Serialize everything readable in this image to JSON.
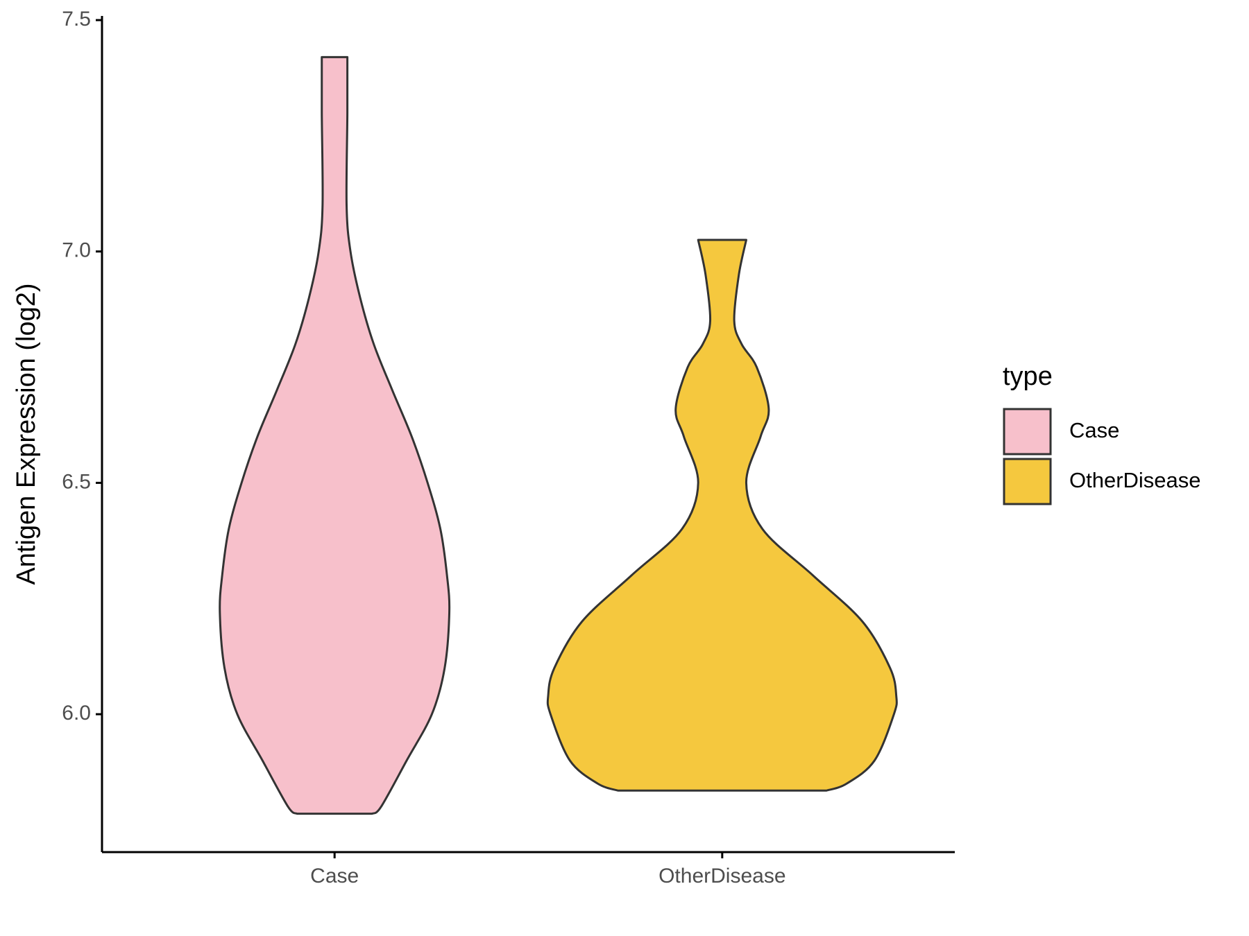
{
  "chart_data": {
    "type": "violin",
    "y_label": "Antigen Expression (log2)",
    "categories": [
      "Case",
      "OtherDisease"
    ],
    "legend_title": "type",
    "series": [
      {
        "name": "Case",
        "color": "#f7c0cb",
        "y": [
          7.42,
          7.3,
          7.1,
          7.0,
          6.9,
          6.8,
          6.7,
          6.6,
          6.5,
          6.4,
          6.3,
          6.22,
          6.1,
          6.0,
          5.9,
          5.8,
          5.785
        ],
        "half_width": [
          0.033,
          0.033,
          0.031,
          0.041,
          0.066,
          0.101,
          0.149,
          0.199,
          0.24,
          0.273,
          0.29,
          0.296,
          0.284,
          0.251,
          0.186,
          0.12,
          0.097
        ]
      },
      {
        "name": "OtherDisease",
        "color": "#f5c83e",
        "y": [
          7.025,
          6.95,
          6.85,
          6.8,
          6.75,
          6.66,
          6.6,
          6.5,
          6.4,
          6.3,
          6.2,
          6.1,
          6.04,
          6.0,
          5.9,
          5.85,
          5.835
        ],
        "half_width": [
          0.062,
          0.043,
          0.031,
          0.05,
          0.089,
          0.12,
          0.099,
          0.062,
          0.104,
          0.234,
          0.362,
          0.433,
          0.449,
          0.443,
          0.393,
          0.321,
          0.269
        ]
      }
    ],
    "xlim": [
      0.4,
      2.6
    ],
    "ylim": [
      5.702,
      7.509
    ],
    "yticks": [
      {
        "value": 6,
        "label": "6.0"
      },
      {
        "value": 6.5,
        "label": "6.5"
      },
      {
        "value": 7,
        "label": "7.0"
      },
      {
        "value": 7.5,
        "label": "7.5"
      }
    ]
  }
}
